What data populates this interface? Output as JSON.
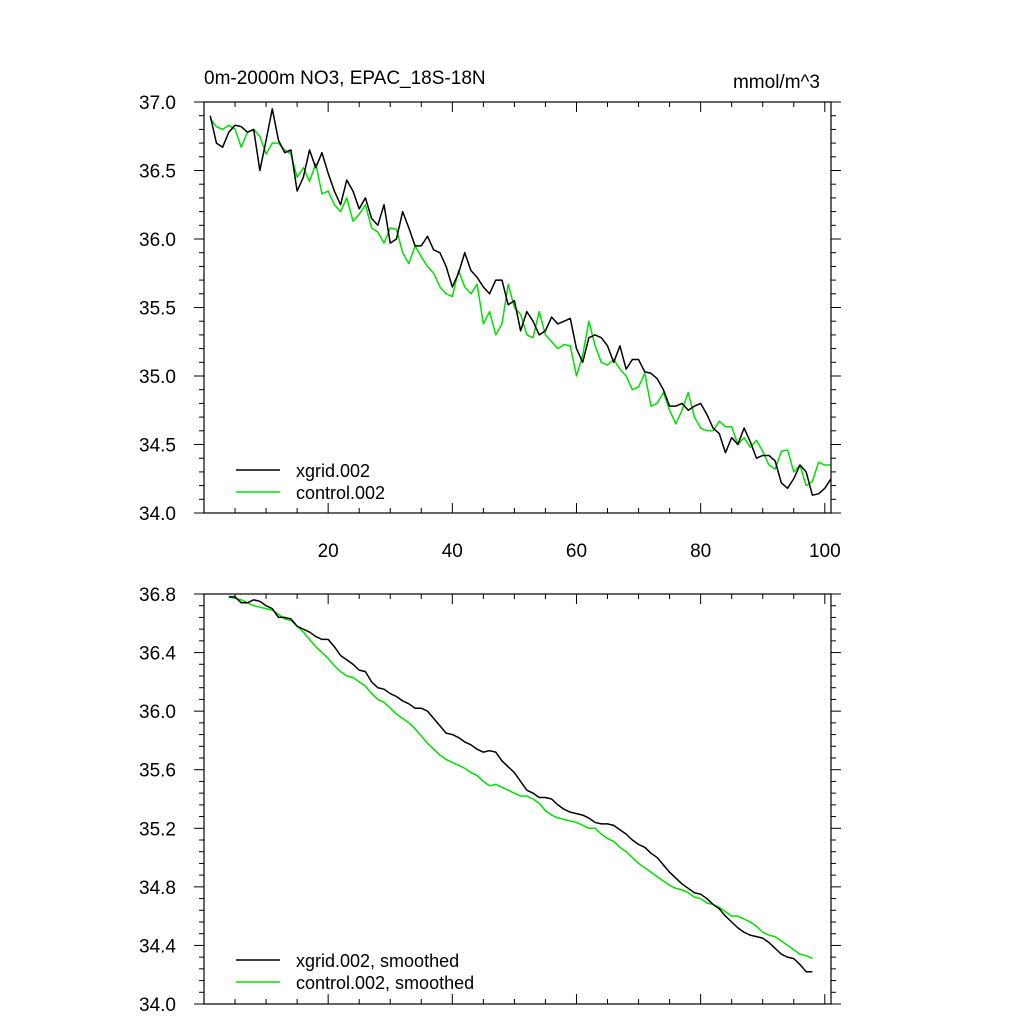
{
  "chart_data": [
    {
      "type": "line",
      "title": "0m-2000m NO3, EPAC_18S-18N",
      "units": "mmol/m^3",
      "xlabel": "",
      "ylabel": "",
      "xlim": [
        0,
        101
      ],
      "ylim": [
        34.0,
        37.0
      ],
      "x_ticks": [
        20,
        40,
        60,
        80,
        100
      ],
      "x_tick_labels": [
        "20",
        "40",
        "60",
        "80",
        "100"
      ],
      "y_ticks": [
        34.0,
        34.5,
        35.0,
        35.5,
        36.0,
        36.5,
        37.0
      ],
      "y_tick_labels": [
        "34.0",
        "34.5",
        "35.0",
        "35.5",
        "36.0",
        "36.5",
        "37.0"
      ],
      "grid": false,
      "legend": "bottom-left",
      "series": [
        {
          "name": "xgrid.002",
          "color": "#000000",
          "x": [
            1,
            2,
            3,
            4,
            5,
            6,
            7,
            8,
            9,
            10,
            11,
            12,
            13,
            14,
            15,
            16,
            17,
            18,
            19,
            20,
            21,
            22,
            23,
            24,
            25,
            26,
            27,
            28,
            29,
            30,
            31,
            32,
            33,
            34,
            35,
            36,
            37,
            38,
            39,
            40,
            41,
            42,
            43,
            44,
            45,
            46,
            47,
            48,
            49,
            50,
            51,
            52,
            53,
            54,
            55,
            56,
            57,
            58,
            59,
            60,
            61,
            62,
            63,
            64,
            65,
            66,
            67,
            68,
            69,
            70,
            71,
            72,
            73,
            74,
            75,
            76,
            77,
            78,
            79,
            80,
            81,
            82,
            83,
            84,
            85,
            86,
            87,
            88,
            89,
            90,
            91,
            92,
            93,
            94,
            95,
            96,
            97,
            98,
            99,
            100,
            101
          ],
          "values": [
            36.9,
            36.7,
            36.67,
            36.78,
            36.83,
            36.82,
            36.78,
            36.8,
            36.5,
            36.72,
            36.95,
            36.72,
            36.63,
            36.65,
            36.35,
            36.45,
            36.65,
            36.52,
            36.63,
            36.48,
            36.35,
            36.25,
            36.43,
            36.35,
            36.22,
            36.3,
            36.15,
            36.1,
            36.25,
            35.97,
            36.0,
            36.2,
            36.08,
            35.95,
            35.95,
            36.02,
            35.92,
            35.9,
            35.8,
            35.65,
            35.75,
            35.9,
            35.77,
            35.72,
            35.65,
            35.6,
            35.7,
            35.7,
            35.52,
            35.55,
            35.33,
            35.47,
            35.4,
            35.3,
            35.33,
            35.43,
            35.38,
            35.4,
            35.42,
            35.2,
            35.1,
            35.28,
            35.3,
            35.28,
            35.22,
            35.1,
            35.22,
            35.05,
            35.12,
            35.12,
            35.03,
            35.02,
            34.98,
            34.9,
            34.78,
            34.78,
            34.8,
            34.75,
            34.78,
            34.8,
            34.72,
            34.62,
            34.58,
            34.44,
            34.55,
            34.5,
            34.62,
            34.52,
            34.4,
            34.42,
            34.42,
            34.38,
            34.22,
            34.18,
            34.25,
            34.35,
            34.3,
            34.13,
            34.14,
            34.18,
            34.25
          ]
        },
        {
          "name": "control.002",
          "color": "#00e000",
          "x": [
            1,
            2,
            3,
            4,
            5,
            6,
            7,
            8,
            9,
            10,
            11,
            12,
            13,
            14,
            15,
            16,
            17,
            18,
            19,
            20,
            21,
            22,
            23,
            24,
            25,
            26,
            27,
            28,
            29,
            30,
            31,
            32,
            33,
            34,
            35,
            36,
            37,
            38,
            39,
            40,
            41,
            42,
            43,
            44,
            45,
            46,
            47,
            48,
            49,
            50,
            51,
            52,
            53,
            54,
            55,
            56,
            57,
            58,
            59,
            60,
            61,
            62,
            63,
            64,
            65,
            66,
            67,
            68,
            69,
            70,
            71,
            72,
            73,
            74,
            75,
            76,
            77,
            78,
            79,
            80,
            81,
            82,
            83,
            84,
            85,
            86,
            87,
            88,
            89,
            90,
            91,
            92,
            93,
            94,
            95,
            96,
            97,
            98,
            99,
            100,
            101
          ],
          "values": [
            36.88,
            36.82,
            36.8,
            36.83,
            36.8,
            36.67,
            36.78,
            36.8,
            36.75,
            36.62,
            36.7,
            36.7,
            36.65,
            36.62,
            36.45,
            36.52,
            36.42,
            36.55,
            36.33,
            36.35,
            36.25,
            36.2,
            36.3,
            36.13,
            36.18,
            36.25,
            36.08,
            36.05,
            35.97,
            36.08,
            36.07,
            35.9,
            35.82,
            35.95,
            35.87,
            35.8,
            35.75,
            35.65,
            35.6,
            35.58,
            35.77,
            35.65,
            35.6,
            35.67,
            35.38,
            35.47,
            35.3,
            35.38,
            35.67,
            35.5,
            35.45,
            35.3,
            35.28,
            35.47,
            35.3,
            35.25,
            35.2,
            35.23,
            35.22,
            35.0,
            35.15,
            35.4,
            35.22,
            35.1,
            35.08,
            35.12,
            35.05,
            35.0,
            34.9,
            34.92,
            35.02,
            34.78,
            34.8,
            34.88,
            34.75,
            34.65,
            34.75,
            34.88,
            34.7,
            34.62,
            34.6,
            34.6,
            34.67,
            34.63,
            34.63,
            34.5,
            34.55,
            34.48,
            34.53,
            34.45,
            34.35,
            34.32,
            34.45,
            34.46,
            34.3,
            34.35,
            34.2,
            34.23,
            34.37,
            34.35,
            34.35
          ]
        }
      ]
    },
    {
      "type": "line",
      "title": "",
      "xlabel": "",
      "ylabel": "",
      "xlim": [
        0,
        101
      ],
      "ylim": [
        34.0,
        36.8
      ],
      "x_ticks": [
        20,
        40,
        60,
        80,
        100
      ],
      "y_ticks": [
        34.0,
        34.4,
        34.8,
        35.2,
        35.6,
        36.0,
        36.4,
        36.8
      ],
      "y_tick_labels": [
        "34.0",
        "34.4",
        "34.8",
        "35.2",
        "35.6",
        "36.0",
        "36.4",
        "36.8"
      ],
      "grid": false,
      "legend": "bottom-left",
      "series": [
        {
          "name": "xgrid.002, smoothed",
          "color": "#000000",
          "x": [
            4,
            5,
            6,
            7,
            8,
            9,
            10,
            11,
            12,
            13,
            14,
            15,
            16,
            17,
            18,
            19,
            20,
            21,
            22,
            23,
            24,
            25,
            26,
            27,
            28,
            29,
            30,
            31,
            32,
            33,
            34,
            35,
            36,
            37,
            38,
            39,
            40,
            41,
            42,
            43,
            44,
            45,
            46,
            47,
            48,
            49,
            50,
            51,
            52,
            53,
            54,
            55,
            56,
            57,
            58,
            59,
            60,
            61,
            62,
            63,
            64,
            65,
            66,
            67,
            68,
            69,
            70,
            71,
            72,
            73,
            74,
            75,
            76,
            77,
            78,
            79,
            80,
            81,
            82,
            83,
            84,
            85,
            86,
            87,
            88,
            89,
            90,
            91,
            92,
            93,
            94,
            95,
            96,
            97,
            98
          ],
          "values": [
            36.78,
            36.78,
            36.74,
            36.74,
            36.76,
            36.75,
            36.72,
            36.7,
            36.64,
            36.64,
            36.63,
            36.58,
            36.56,
            36.54,
            36.51,
            36.49,
            36.49,
            36.44,
            36.38,
            36.35,
            36.32,
            36.28,
            36.27,
            36.2,
            36.16,
            36.15,
            36.12,
            36.1,
            36.07,
            36.05,
            36.02,
            36.02,
            36.0,
            35.95,
            35.9,
            35.85,
            35.84,
            35.82,
            35.79,
            35.77,
            35.74,
            35.72,
            35.73,
            35.72,
            35.66,
            35.62,
            35.58,
            35.52,
            35.46,
            35.44,
            35.41,
            35.41,
            35.4,
            35.36,
            35.33,
            35.31,
            35.3,
            35.29,
            35.27,
            35.24,
            35.23,
            35.23,
            35.22,
            35.19,
            35.16,
            35.12,
            35.09,
            35.07,
            35.03,
            35.0,
            34.95,
            34.9,
            34.86,
            34.82,
            34.79,
            34.76,
            34.75,
            34.72,
            34.68,
            34.65,
            34.6,
            34.56,
            34.52,
            34.49,
            34.47,
            34.46,
            34.45,
            34.42,
            34.38,
            34.34,
            34.32,
            34.31,
            34.27,
            34.22,
            34.22
          ]
        },
        {
          "name": "control.002, smoothed",
          "color": "#00e000",
          "x": [
            4,
            5,
            6,
            7,
            8,
            9,
            10,
            11,
            12,
            13,
            14,
            15,
            16,
            17,
            18,
            19,
            20,
            21,
            22,
            23,
            24,
            25,
            26,
            27,
            28,
            29,
            30,
            31,
            32,
            33,
            34,
            35,
            36,
            37,
            38,
            39,
            40,
            41,
            42,
            43,
            44,
            45,
            46,
            47,
            48,
            49,
            50,
            51,
            52,
            53,
            54,
            55,
            56,
            57,
            58,
            59,
            60,
            61,
            62,
            63,
            64,
            65,
            66,
            67,
            68,
            69,
            70,
            71,
            72,
            73,
            74,
            75,
            76,
            77,
            78,
            79,
            80,
            81,
            82,
            83,
            84,
            85,
            86,
            87,
            88,
            89,
            90,
            91,
            92,
            93,
            94,
            95,
            96,
            97,
            98
          ],
          "values": [
            36.78,
            36.77,
            36.76,
            36.74,
            36.72,
            36.71,
            36.7,
            36.69,
            36.66,
            36.63,
            36.62,
            36.58,
            36.54,
            36.49,
            36.44,
            36.4,
            36.36,
            36.31,
            36.27,
            36.24,
            36.23,
            36.2,
            36.17,
            36.12,
            36.08,
            36.06,
            36.02,
            35.98,
            35.95,
            35.92,
            35.88,
            35.83,
            35.78,
            35.74,
            35.7,
            35.67,
            35.65,
            35.63,
            35.61,
            35.58,
            35.56,
            35.52,
            35.49,
            35.5,
            35.48,
            35.46,
            35.44,
            35.42,
            35.42,
            35.4,
            35.37,
            35.32,
            35.29,
            35.27,
            35.26,
            35.25,
            35.24,
            35.22,
            35.2,
            35.2,
            35.16,
            35.13,
            35.11,
            35.07,
            35.04,
            35.0,
            34.96,
            34.93,
            34.9,
            34.87,
            34.84,
            34.81,
            34.79,
            34.78,
            34.76,
            34.73,
            34.72,
            34.69,
            34.68,
            34.66,
            34.63,
            34.6,
            34.6,
            34.58,
            34.56,
            34.53,
            34.49,
            34.47,
            34.46,
            34.43,
            34.4,
            34.37,
            34.34,
            34.33,
            34.31
          ]
        }
      ]
    }
  ]
}
